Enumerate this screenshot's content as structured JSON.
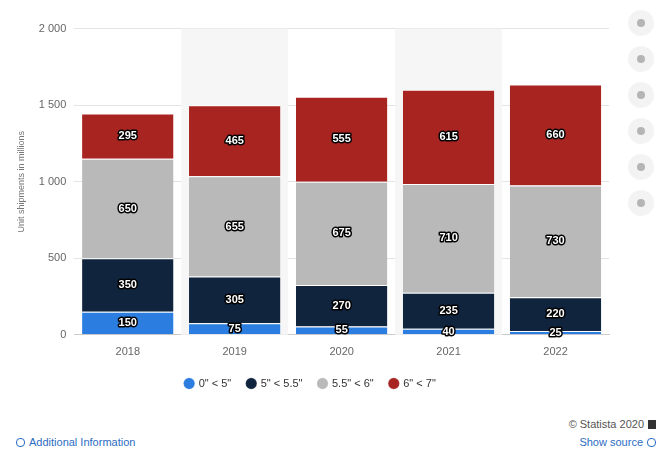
{
  "chart_data": {
    "type": "bar",
    "stacked": true,
    "ylabel": "Unit shipments in millions",
    "categories": [
      "2018",
      "2019",
      "2020",
      "2021",
      "2022"
    ],
    "series": [
      {
        "name": "0\" < 5\"",
        "color": "#2b7de0",
        "values": [
          150,
          75,
          55,
          40,
          25
        ]
      },
      {
        "name": "5\" < 5.5\"",
        "color": "#10243e",
        "values": [
          350,
          305,
          270,
          235,
          220
        ]
      },
      {
        "name": "5.5\" < 6\"",
        "color": "#b9b9b9",
        "values": [
          650,
          655,
          675,
          710,
          730
        ]
      },
      {
        "name": "6\" < 7\"",
        "color": "#a72420",
        "values": [
          295,
          465,
          555,
          615,
          660
        ]
      }
    ],
    "ylim": [
      0,
      2000
    ],
    "yticks": [
      0,
      500,
      {
        "value": 1000,
        "label": "1 000"
      },
      {
        "value": 1500,
        "label": "1 500"
      },
      {
        "value": 2000,
        "label": "2 000"
      }
    ],
    "grid": true,
    "legend": "bottom",
    "data_labels": true
  },
  "footer": {
    "copyright": "© Statista 2020",
    "left_link": "Additional Information",
    "right_link": "Show source"
  }
}
